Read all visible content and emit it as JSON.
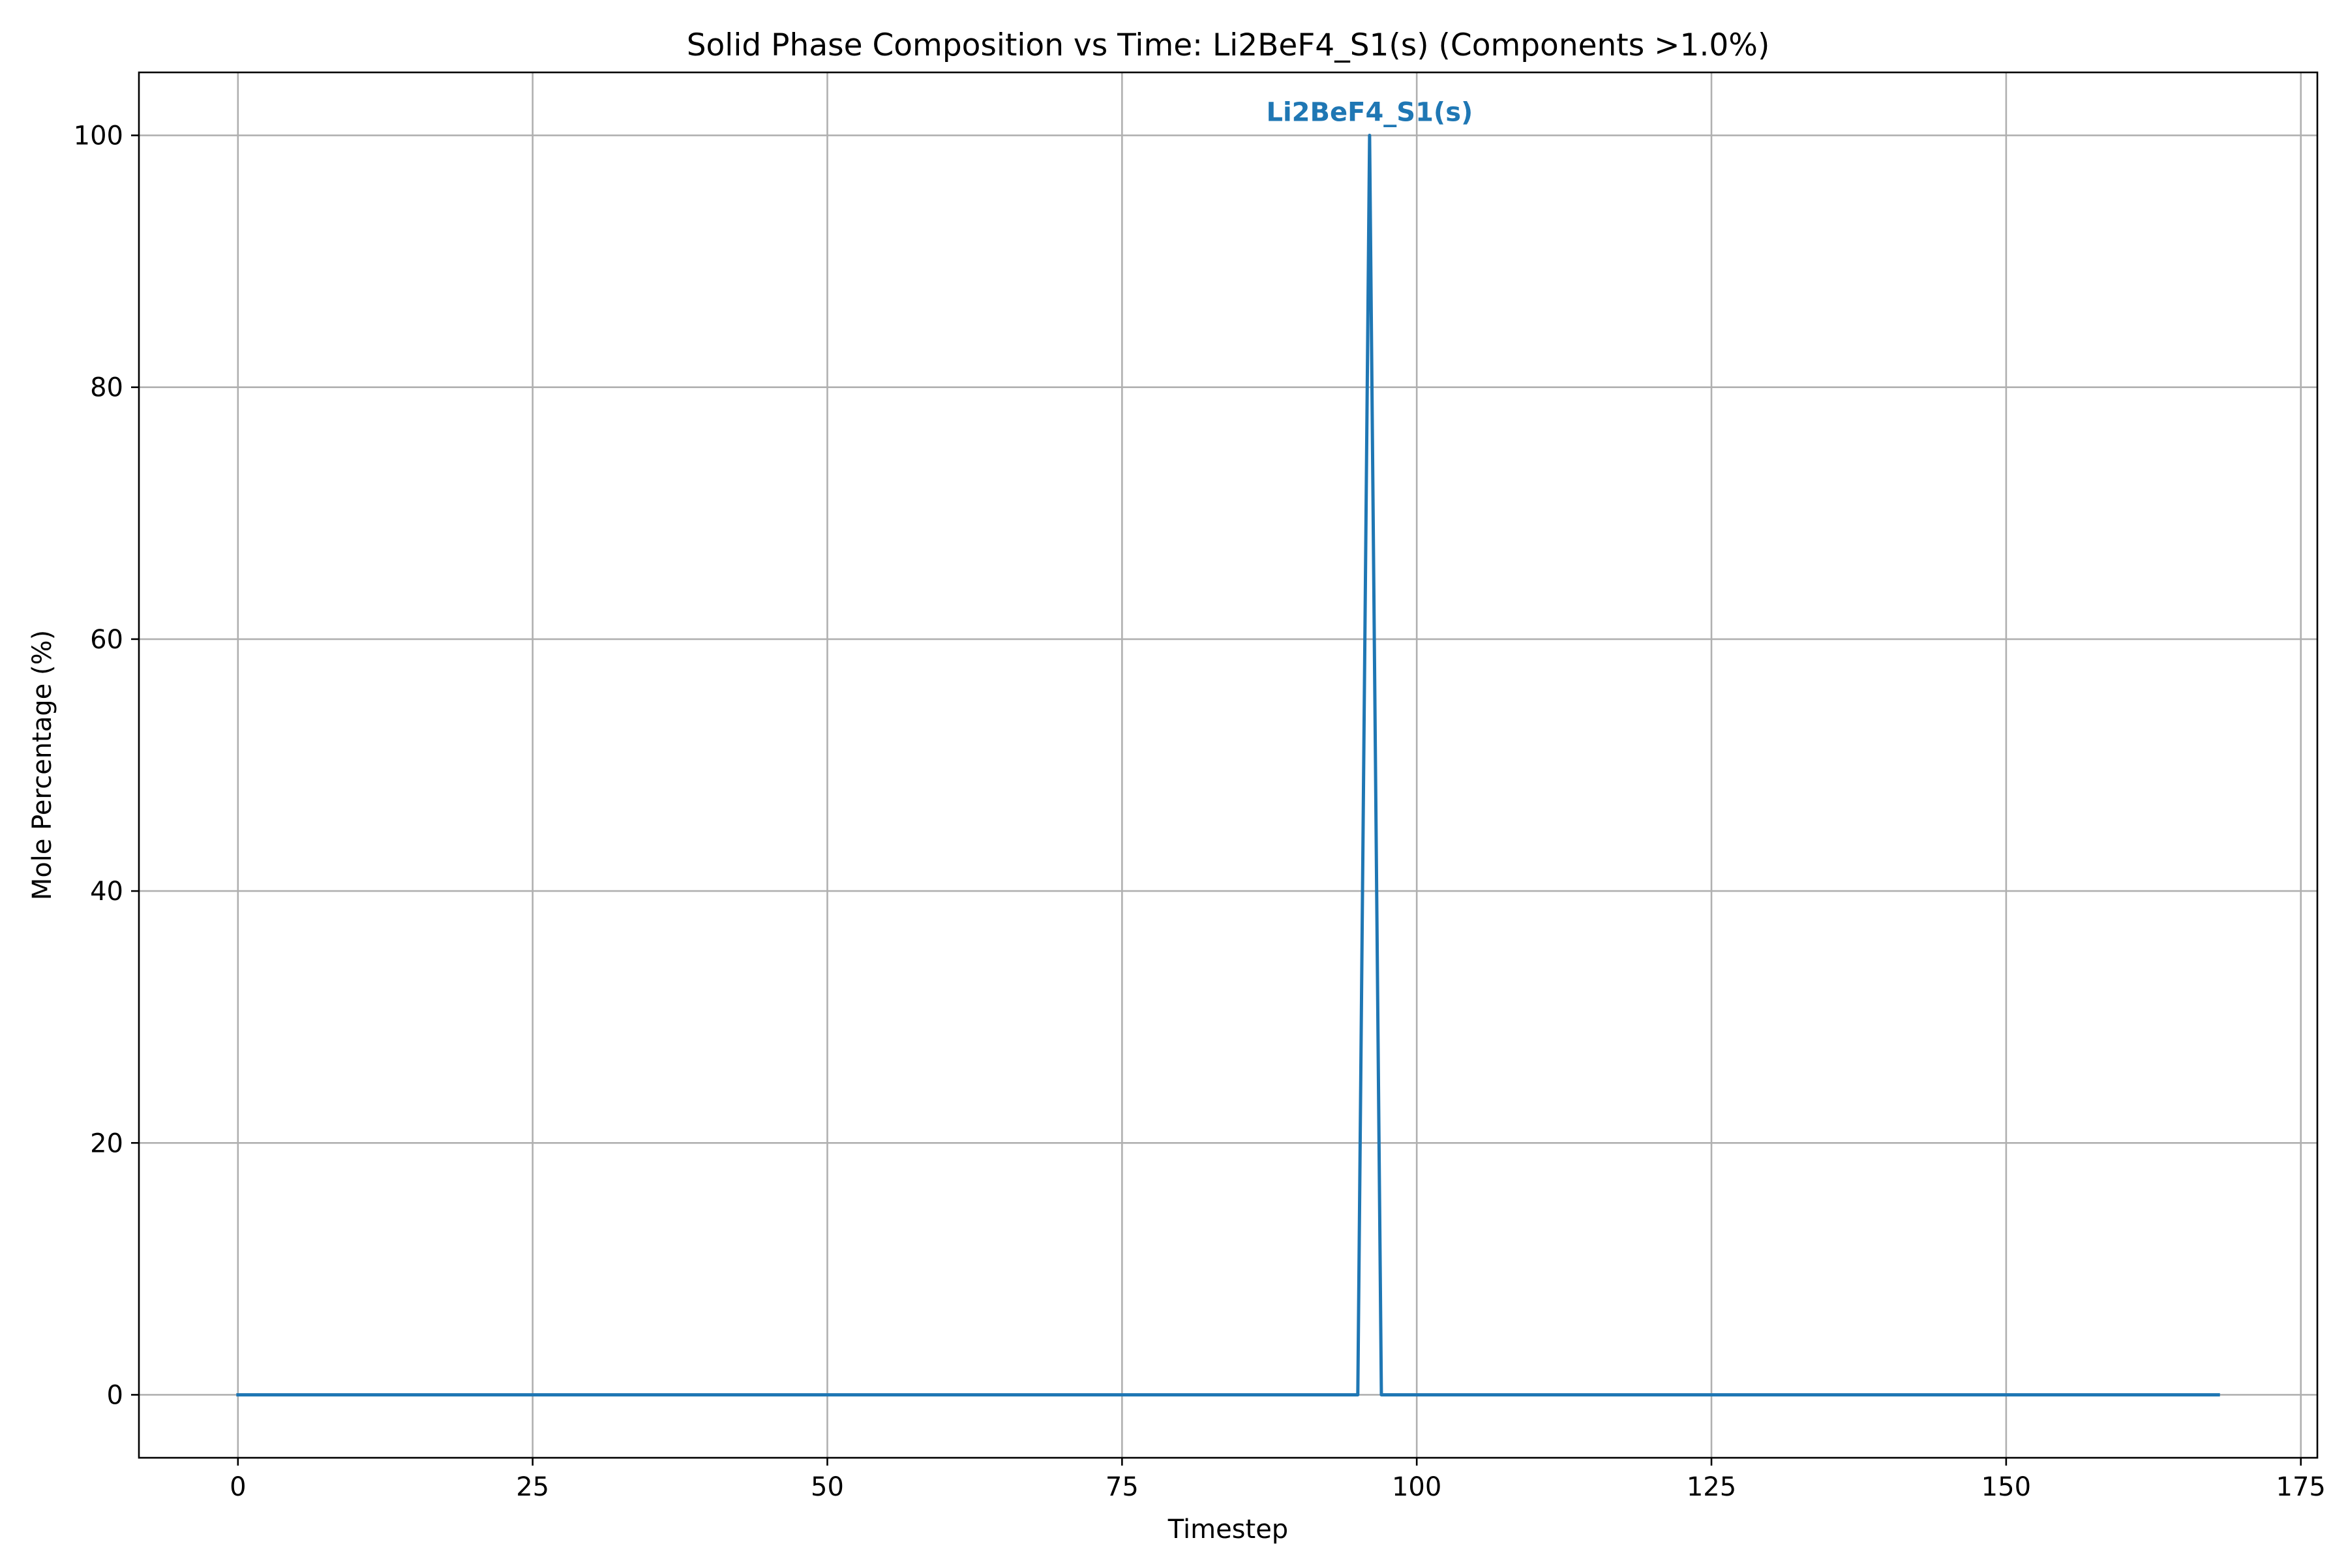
{
  "chart_data": {
    "type": "line",
    "title": "Solid Phase Composition vs Time: Li2BeF4_S1(s) (Components >1.0%)",
    "xlabel": "Timestep",
    "ylabel": "Mole Percentage (%)",
    "xlim": [
      -8.4,
      176.4
    ],
    "ylim": [
      -5,
      105
    ],
    "xticks": [
      0,
      25,
      50,
      75,
      100,
      125,
      150,
      175
    ],
    "yticks": [
      0,
      20,
      40,
      60,
      80,
      100
    ],
    "grid": true,
    "legend": "none",
    "series": [
      {
        "name": "Li2BeF4_S1(s)",
        "color": "#1f77b4",
        "x": [
          0,
          95,
          96,
          97,
          168
        ],
        "y": [
          0,
          0,
          100,
          0,
          0
        ]
      }
    ],
    "annotations": [
      {
        "text": "Li2BeF4_S1(s)",
        "x": 96,
        "y": 100,
        "color": "#1f77b4",
        "bold": true
      }
    ]
  }
}
